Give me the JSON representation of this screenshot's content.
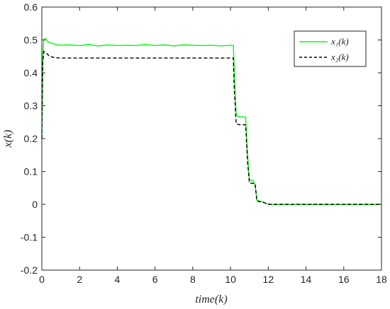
{
  "chart_data": {
    "type": "line",
    "xlabel": "time(k)",
    "ylabel": "x(k)",
    "xlim": [
      0,
      18
    ],
    "ylim": [
      -0.2,
      0.6
    ],
    "xticks": [
      "0",
      "2",
      "4",
      "6",
      "8",
      "10",
      "12",
      "14",
      "16",
      "18"
    ],
    "yticks": [
      "0.6",
      "0.5",
      "0.4",
      "0.3",
      "0.2",
      "0.1",
      "0",
      "-0.1",
      "-0.2"
    ],
    "legend_position": "top-right",
    "grid": false,
    "series": [
      {
        "name": "x₁(k)",
        "color": "#00ff00",
        "style": "solid",
        "points": [
          [
            0.0,
            0.2
          ],
          [
            0.05,
            0.45
          ],
          [
            0.1,
            0.5
          ],
          [
            0.2,
            0.505
          ],
          [
            0.3,
            0.495
          ],
          [
            0.5,
            0.49
          ],
          [
            0.7,
            0.487
          ],
          [
            1.0,
            0.484
          ],
          [
            1.5,
            0.485
          ],
          [
            2.0,
            0.483
          ],
          [
            2.5,
            0.486
          ],
          [
            3.0,
            0.482
          ],
          [
            3.5,
            0.485
          ],
          [
            4.0,
            0.483
          ],
          [
            4.5,
            0.484
          ],
          [
            5.0,
            0.483
          ],
          [
            5.5,
            0.486
          ],
          [
            6.0,
            0.483
          ],
          [
            6.5,
            0.485
          ],
          [
            7.0,
            0.482
          ],
          [
            7.5,
            0.485
          ],
          [
            8.0,
            0.484
          ],
          [
            8.5,
            0.483
          ],
          [
            9.0,
            0.484
          ],
          [
            9.5,
            0.482
          ],
          [
            10.0,
            0.484
          ],
          [
            10.15,
            0.483
          ],
          [
            10.2,
            0.4
          ],
          [
            10.3,
            0.27
          ],
          [
            10.5,
            0.266
          ],
          [
            10.7,
            0.266
          ],
          [
            10.8,
            0.265
          ],
          [
            10.9,
            0.15
          ],
          [
            11.0,
            0.075
          ],
          [
            11.2,
            0.073
          ],
          [
            11.3,
            0.06
          ],
          [
            11.4,
            0.012
          ],
          [
            11.7,
            0.008
          ],
          [
            11.9,
            0.002
          ],
          [
            12.2,
            0.0
          ],
          [
            18.0,
            0.0
          ]
        ]
      },
      {
        "name": "x₂(k)",
        "color": "#000000",
        "style": "dashed",
        "points": [
          [
            0.0,
            0.2
          ],
          [
            0.05,
            0.43
          ],
          [
            0.1,
            0.465
          ],
          [
            0.25,
            0.46
          ],
          [
            0.4,
            0.45
          ],
          [
            0.7,
            0.446
          ],
          [
            1.0,
            0.445
          ],
          [
            4.0,
            0.445
          ],
          [
            8.0,
            0.445
          ],
          [
            10.15,
            0.445
          ],
          [
            10.2,
            0.35
          ],
          [
            10.3,
            0.245
          ],
          [
            10.5,
            0.242
          ],
          [
            10.8,
            0.242
          ],
          [
            10.9,
            0.13
          ],
          [
            11.0,
            0.065
          ],
          [
            11.3,
            0.063
          ],
          [
            11.4,
            0.01
          ],
          [
            11.8,
            0.005
          ],
          [
            12.0,
            0.0
          ],
          [
            18.0,
            0.0
          ]
        ]
      }
    ]
  }
}
